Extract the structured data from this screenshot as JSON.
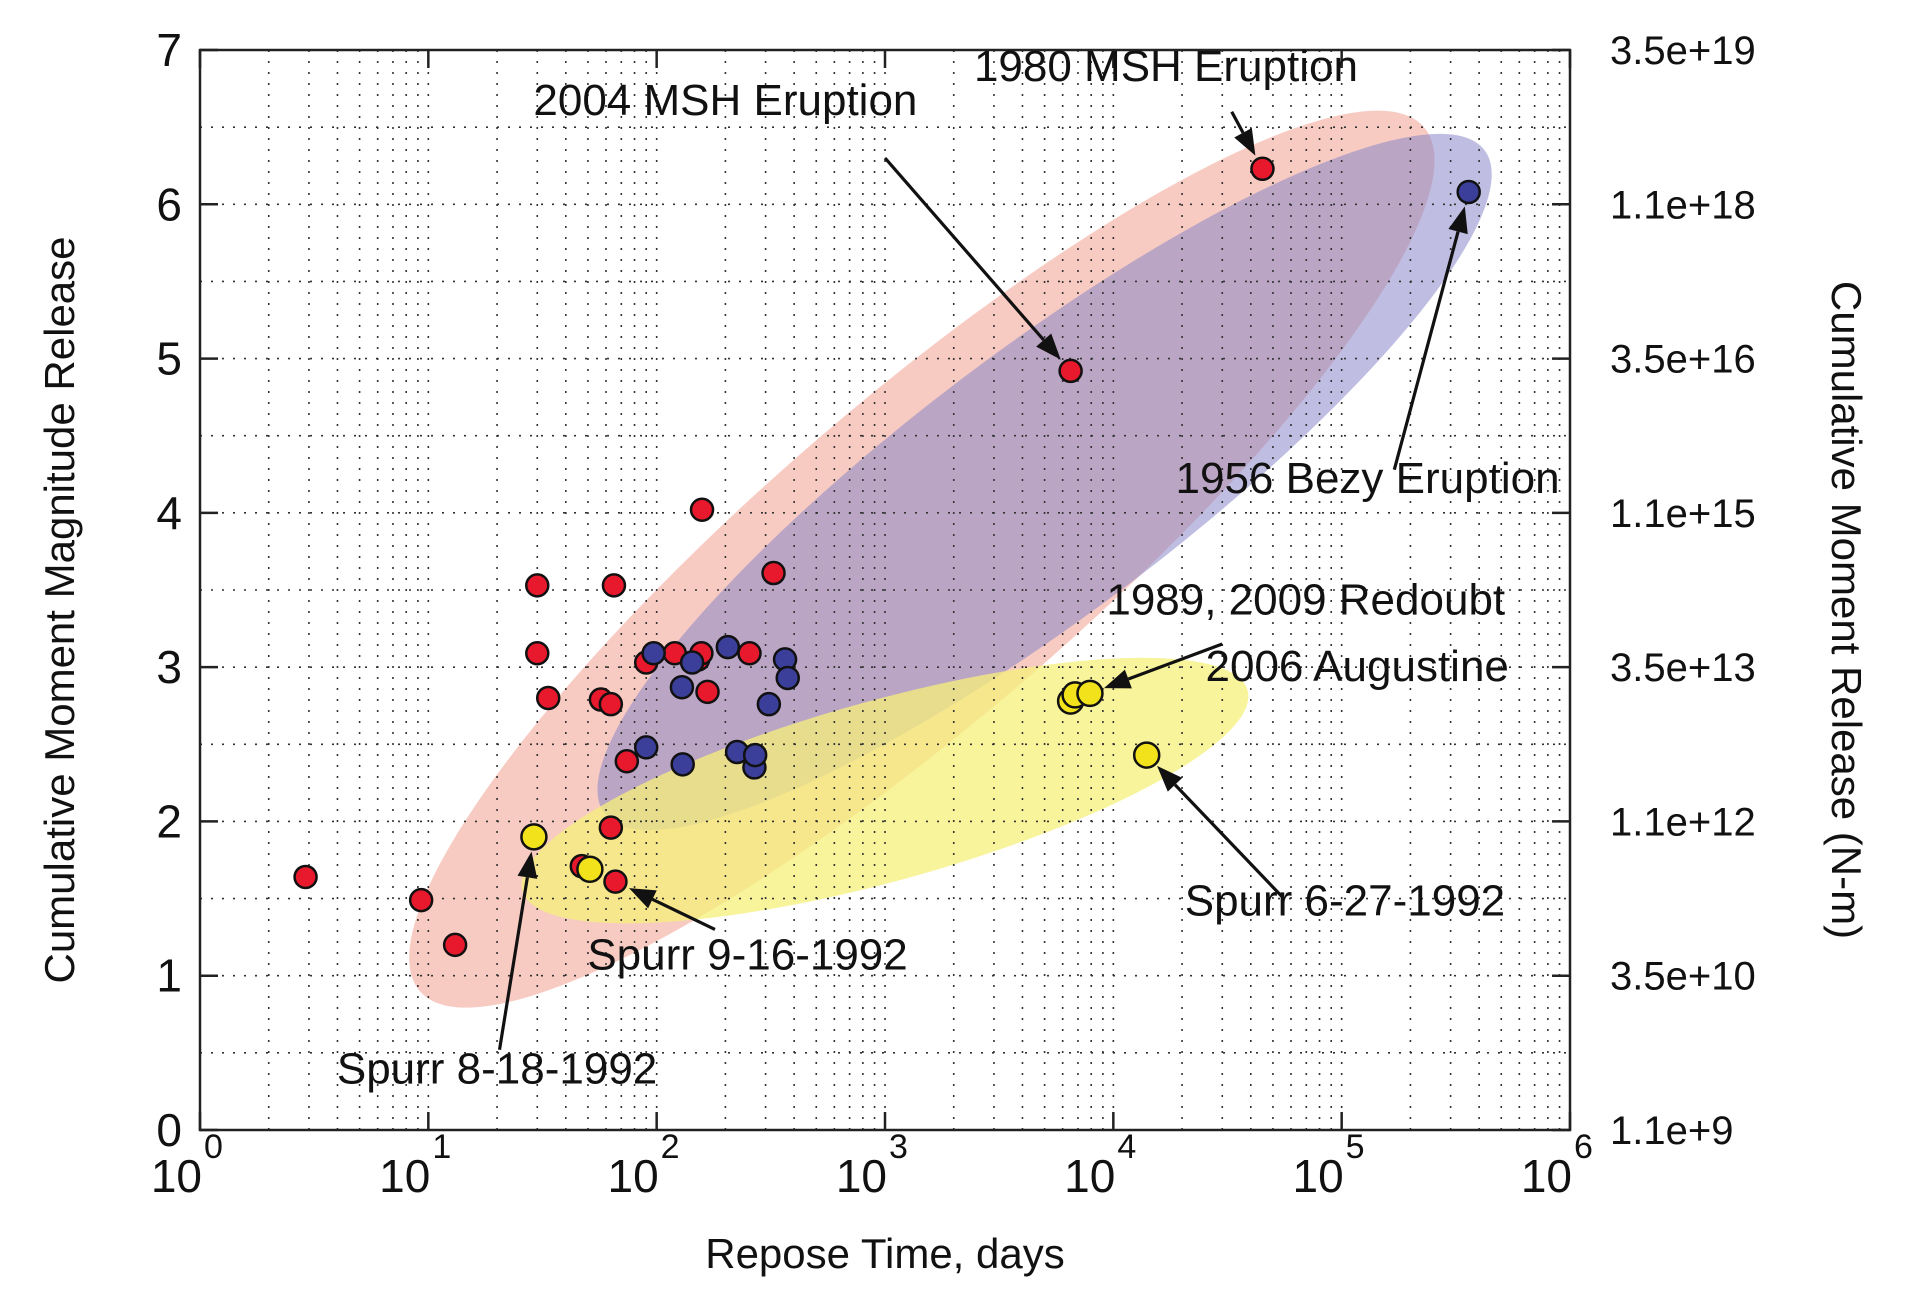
{
  "chart_data": {
    "type": "scatter",
    "x_scale": "log",
    "xlim": [
      1,
      1000000
    ],
    "ylim": [
      0,
      7
    ],
    "xlabel": "Repose Time, days",
    "ylabel": "Cumulative Moment Magnitude Release",
    "y2label": "Cumulative Moment Release (N-m)",
    "grid": true,
    "x_ticks": [
      {
        "value": 1,
        "base": "10",
        "exp": "0"
      },
      {
        "value": 10,
        "base": "10",
        "exp": "1"
      },
      {
        "value": 100,
        "base": "10",
        "exp": "2"
      },
      {
        "value": 1000,
        "base": "10",
        "exp": "3"
      },
      {
        "value": 10000,
        "base": "10",
        "exp": "4"
      },
      {
        "value": 100000,
        "base": "10",
        "exp": "5"
      },
      {
        "value": 1000000,
        "base": "10",
        "exp": "6"
      }
    ],
    "y_ticks": [
      "0",
      "1",
      "2",
      "3",
      "4",
      "5",
      "6",
      "7"
    ],
    "y2_ticks": [
      "1.1e+9",
      "3.5e+10",
      "1.1e+12",
      "3.5e+13",
      "1.1e+15",
      "3.5e+16",
      "1.1e+18",
      "3.5e+19"
    ],
    "colors": {
      "red_series": "#e8192c",
      "blue_series": "#3b3f9a",
      "yellow_series": "#f2e21b",
      "red_region": "#f0a090",
      "blue_region": "#8a86c8",
      "yellow_region": "#f5f07a"
    },
    "regions": [
      {
        "color": "red_region",
        "opacity": 0.55,
        "x_center": 1450,
        "y_center": 3.7,
        "x_extent": [
          2,
          50000
        ],
        "y_extent": [
          0.9,
          6.5
        ]
      },
      {
        "color": "blue_region",
        "opacity": 0.55,
        "x_center": 5000,
        "y_center": 4.2,
        "x_extent": [
          70,
          500000
        ],
        "y_extent": [
          2.0,
          6.3
        ]
      },
      {
        "color": "yellow_region",
        "opacity": 0.75,
        "x_center": 1000,
        "y_center": 2.2,
        "x_extent": [
          20,
          30000
        ],
        "y_extent": [
          1.6,
          2.9
        ]
      }
    ],
    "series": [
      {
        "color": "red_series",
        "points": [
          [
            2.9,
            1.64
          ],
          [
            9.3,
            1.49
          ],
          [
            13.1,
            1.2
          ],
          [
            30,
            3.53
          ],
          [
            30,
            3.09
          ],
          [
            33.5,
            2.8
          ],
          [
            47,
            1.71
          ],
          [
            57,
            2.79
          ],
          [
            63,
            2.76
          ],
          [
            63,
            1.96
          ],
          [
            65,
            3.53
          ],
          [
            66,
            1.61
          ],
          [
            74,
            2.39
          ],
          [
            90,
            3.03
          ],
          [
            120,
            3.09
          ],
          [
            152,
            3.05
          ],
          [
            157,
            3.09
          ],
          [
            158,
            4.02
          ],
          [
            167,
            2.84
          ],
          [
            255,
            3.09
          ],
          [
            325,
            3.61
          ],
          [
            6500,
            4.92
          ],
          [
            45000,
            6.23
          ]
        ]
      },
      {
        "color": "blue_series",
        "points": [
          [
            90,
            2.48
          ],
          [
            97,
            3.09
          ],
          [
            129,
            2.87
          ],
          [
            130,
            2.37
          ],
          [
            143,
            3.03
          ],
          [
            205,
            3.13
          ],
          [
            225,
            2.45
          ],
          [
            268,
            2.35
          ],
          [
            270,
            2.43
          ],
          [
            310,
            2.76
          ],
          [
            365,
            3.05
          ],
          [
            375,
            2.93
          ],
          [
            360000,
            6.08
          ]
        ]
      },
      {
        "color": "yellow_series",
        "points": [
          [
            29,
            1.9
          ],
          [
            51,
            1.69
          ],
          [
            6500,
            2.78
          ],
          [
            6800,
            2.82
          ],
          [
            7900,
            2.83
          ],
          [
            14000,
            2.43
          ]
        ]
      }
    ],
    "annotations": [
      {
        "text": "1980 MSH Eruption",
        "anchor": "middle",
        "text_at": [
          17000,
          6.8
        ],
        "arrow_from": [
          33000,
          6.6
        ],
        "arrow_to": [
          45000,
          6.23
        ]
      },
      {
        "text": "2004 MSH Eruption",
        "anchor": "middle",
        "text_at": [
          200,
          6.58
        ],
        "arrow_from": [
          1000,
          6.3
        ],
        "arrow_to": [
          6500,
          4.92
        ]
      },
      {
        "text": "1956 Bezy Eruption",
        "anchor": "end",
        "text_at": [
          900000,
          4.13
        ],
        "arrow_from": [
          170000,
          4.28
        ],
        "arrow_to": [
          360000,
          6.08
        ]
      },
      {
        "text": "1989, 2009 Redoubt",
        "anchor": "end",
        "text_at": [
          520000,
          3.34
        ],
        "arrow_from": [
          30000,
          3.15
        ],
        "arrow_to": [
          7900,
          2.83
        ]
      },
      {
        "text": "2006 Augustine",
        "anchor": "end",
        "text_at": [
          540000,
          2.91
        ],
        "arrow_from": null,
        "arrow_to": null
      },
      {
        "text": "Spurr 6-27-1992",
        "anchor": "end",
        "text_at": [
          520000,
          1.39
        ],
        "arrow_from": [
          55000,
          1.51
        ],
        "arrow_to": [
          14000,
          2.43
        ]
      },
      {
        "text": "Spurr 9-16-1992",
        "anchor": "middle",
        "text_at": [
          250,
          1.04
        ],
        "arrow_from": [
          180,
          1.3
        ],
        "arrow_to": [
          66,
          1.61
        ]
      },
      {
        "text": "Spurr 8-18-1992",
        "anchor": "middle",
        "text_at": [
          20,
          0.3
        ],
        "arrow_from": [
          20.5,
          0.52
        ],
        "arrow_to": [
          29,
          1.9
        ]
      }
    ]
  }
}
